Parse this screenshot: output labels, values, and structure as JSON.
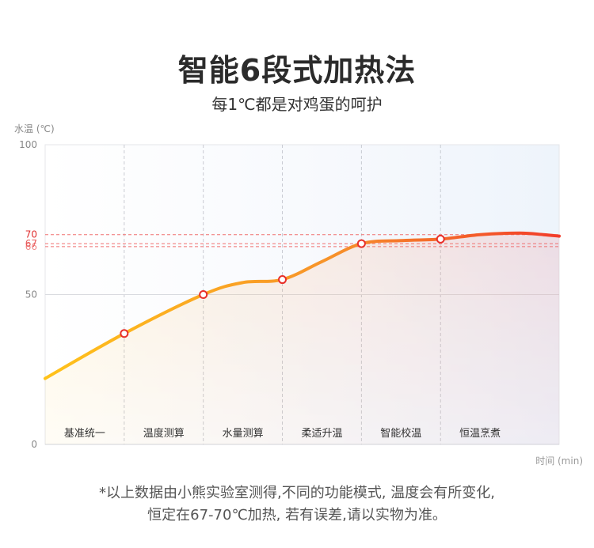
{
  "title": "智能6段式加热法",
  "subtitle": "每1℃都是对鸡蛋的呵护",
  "chart_data": {
    "type": "line",
    "ylabel": "水温 (℃)",
    "xlabel": "时间 (min)",
    "ylim": [
      0,
      100
    ],
    "yticks": [
      {
        "value": 0,
        "label": "0",
        "color": "#888888"
      },
      {
        "value": 50,
        "label": "50",
        "color": "#888888"
      },
      {
        "value": 66,
        "label": "66",
        "color": "#f08a8a"
      },
      {
        "value": 67,
        "label": "67",
        "color": "#e85a5a"
      },
      {
        "value": 70,
        "label": "70",
        "color": "#e03030"
      },
      {
        "value": 100,
        "label": "100",
        "color": "#888888"
      }
    ],
    "reference_lines": [
      66,
      67,
      70
    ],
    "stages": [
      "基准统一",
      "温度测算",
      "水量测算",
      "柔适升温",
      "智能校温",
      "恒温烹煮"
    ],
    "curve": [
      {
        "x": 0,
        "y": 22
      },
      {
        "x": 1,
        "y": 37
      },
      {
        "x": 2,
        "y": 50
      },
      {
        "x": 2.5,
        "y": 54
      },
      {
        "x": 3,
        "y": 55
      },
      {
        "x": 3.5,
        "y": 61
      },
      {
        "x": 4,
        "y": 67
      },
      {
        "x": 4.5,
        "y": 68
      },
      {
        "x": 5,
        "y": 68.5
      },
      {
        "x": 5.5,
        "y": 70
      },
      {
        "x": 6,
        "y": 70.5
      },
      {
        "x": 6.3,
        "y": 70
      },
      {
        "x": 6.5,
        "y": 69.5
      }
    ],
    "markers": [
      {
        "x": 1,
        "y": 37
      },
      {
        "x": 2,
        "y": 50
      },
      {
        "x": 3,
        "y": 55
      },
      {
        "x": 4,
        "y": 67
      },
      {
        "x": 5,
        "y": 68.5
      }
    ],
    "colors": {
      "start": "#ffc21a",
      "end": "#f23c2a",
      "marker": "#e8302a"
    }
  },
  "footnote": {
    "line1": "*以上数据由小熊实验室测得,不同的功能模式, 温度会有所变化,",
    "line2": "恒定在67-70℃加热, 若有误差,请以实物为准。"
  }
}
